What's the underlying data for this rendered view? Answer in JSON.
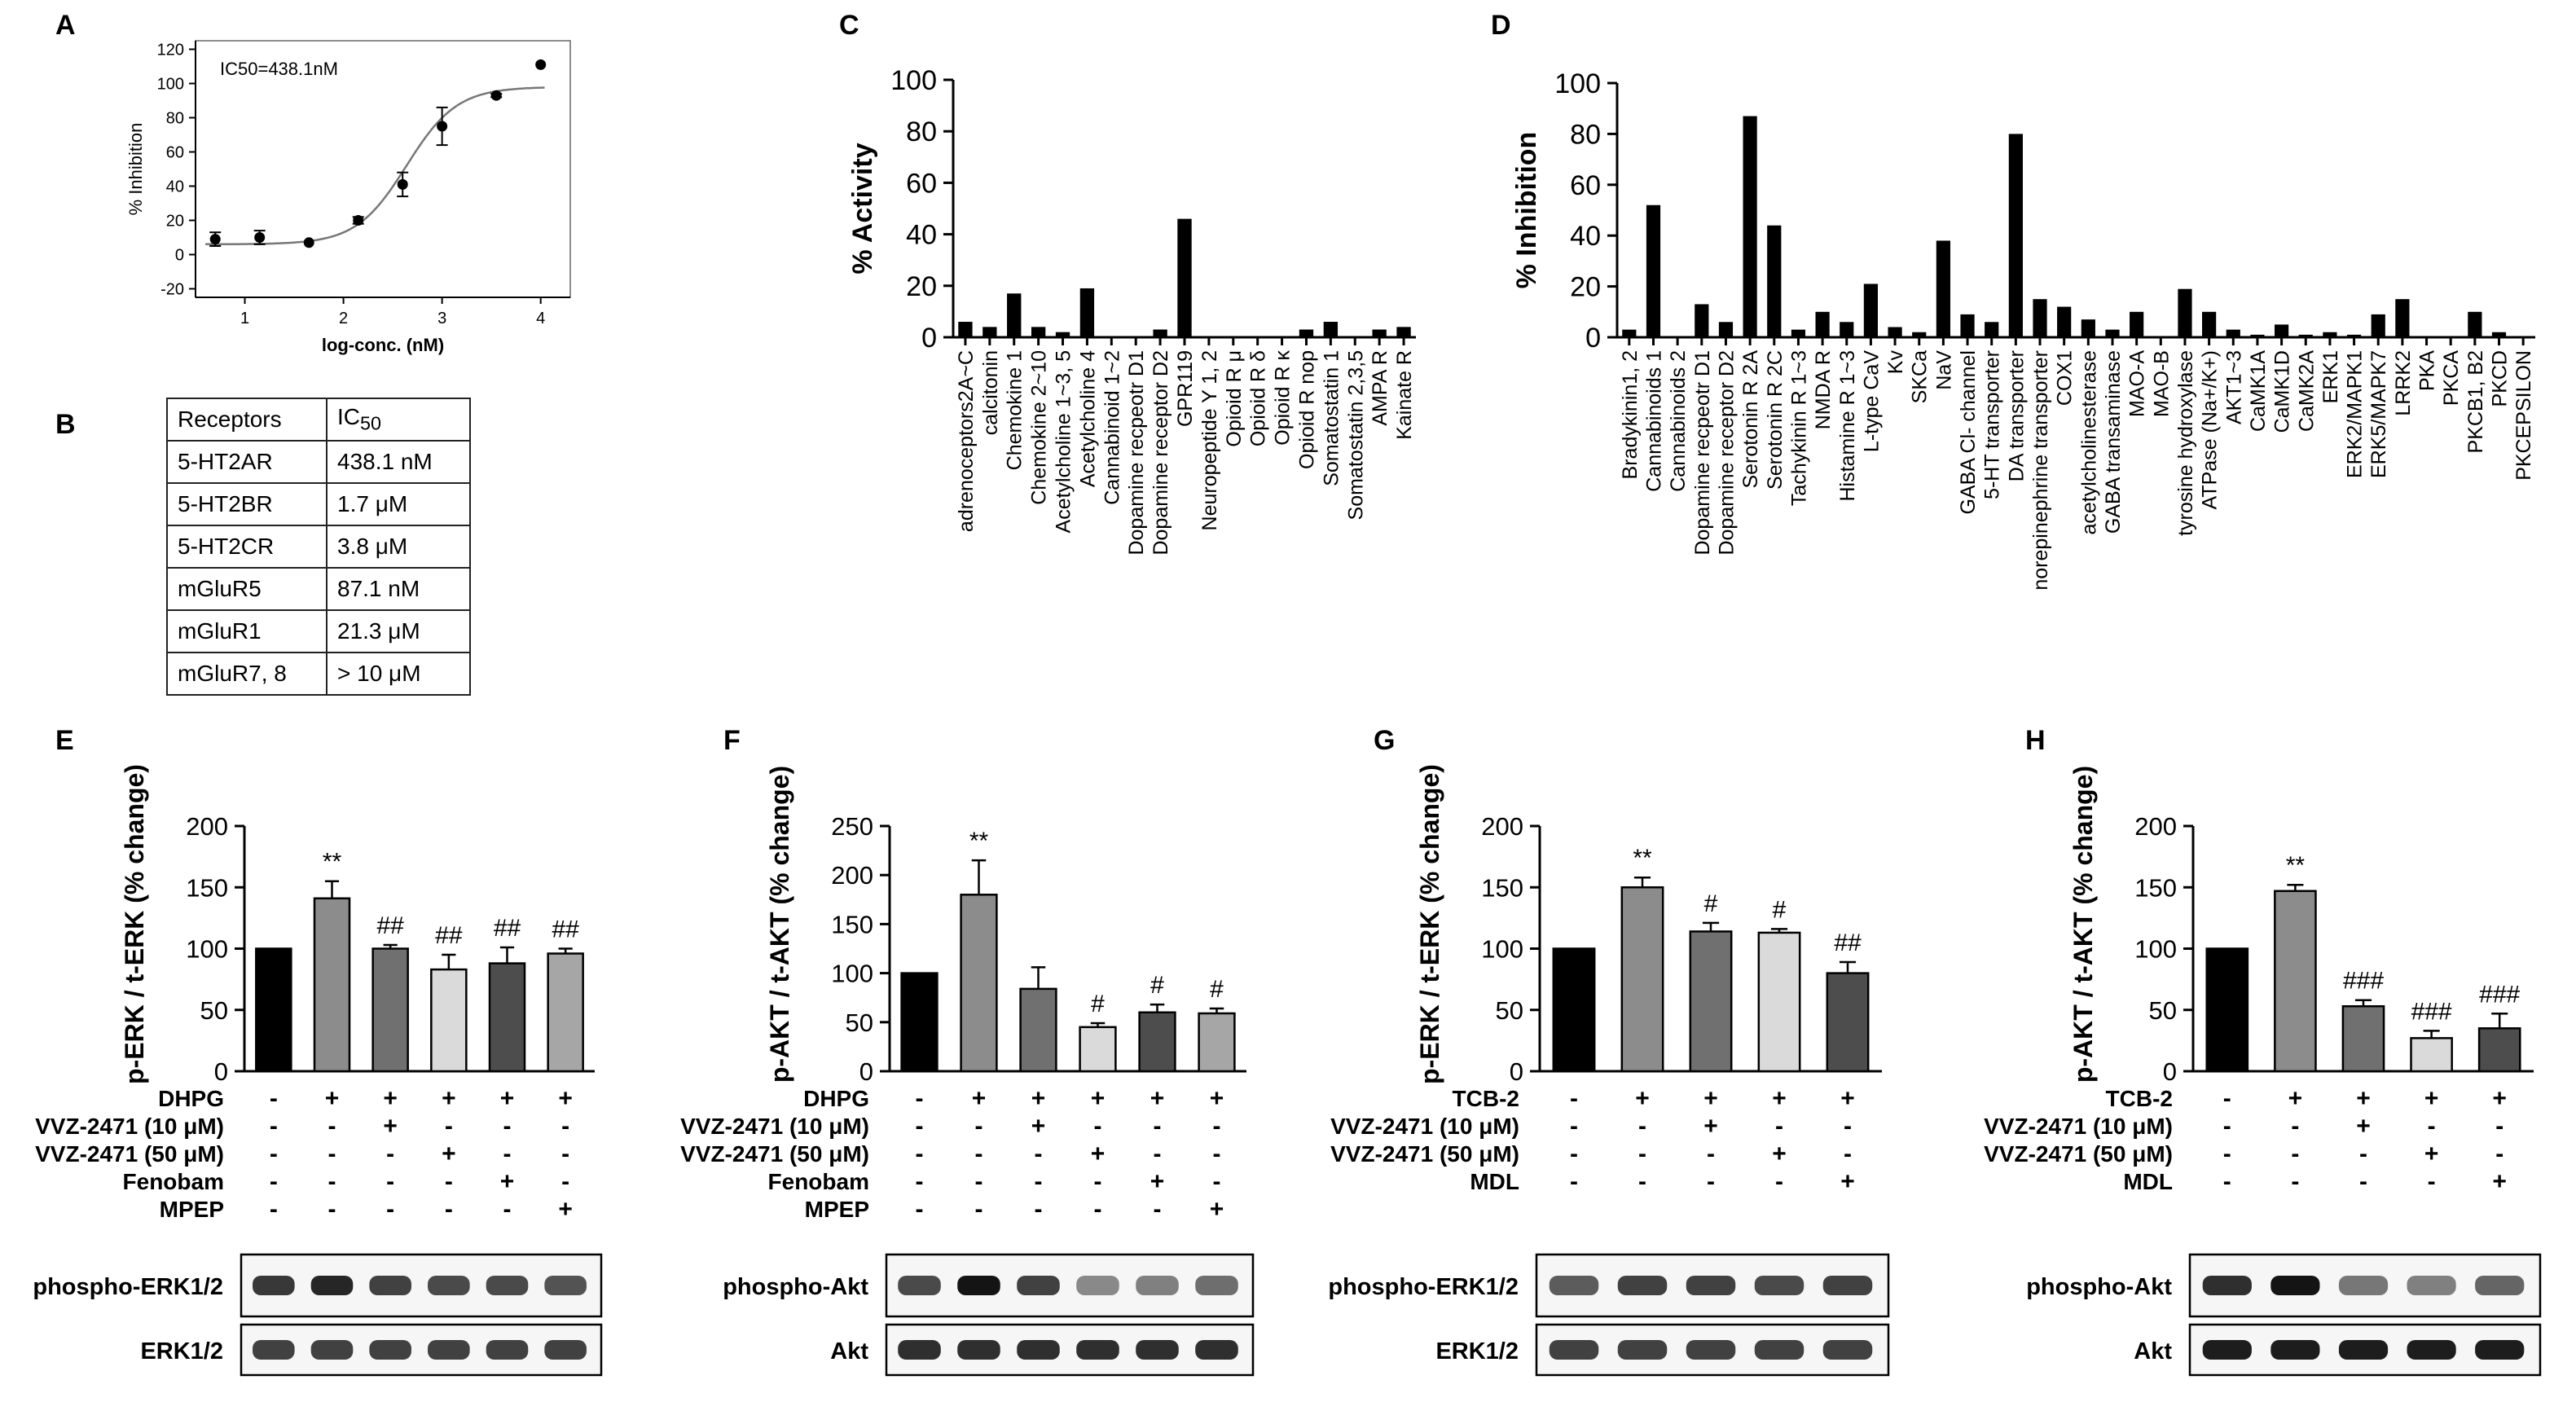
{
  "panel_letters": [
    "A",
    "B",
    "C",
    "D",
    "E",
    "F",
    "G",
    "H"
  ],
  "colors": {
    "black": "#000000",
    "dark": "#4d4d4d",
    "grey": "#8c8c8c",
    "mid": "#707070",
    "light": "#dadada",
    "pale": "#a6a6a6"
  },
  "chart_data": [
    {
      "id": "A",
      "type": "scatter",
      "title": "",
      "annotation": "IC50=438.1nM",
      "xlabel": "log-conc. (nM)",
      "ylabel": "% Inhibition",
      "xlim": [
        0.5,
        4.3
      ],
      "ylim": [
        -25,
        125
      ],
      "xticks": [
        1,
        2,
        3,
        4
      ],
      "yticks": [
        -20,
        0,
        20,
        40,
        60,
        80,
        100,
        120
      ],
      "points": [
        {
          "x": 0.7,
          "y": 9,
          "err": 4
        },
        {
          "x": 1.15,
          "y": 10,
          "err": 4
        },
        {
          "x": 1.65,
          "y": 7,
          "err": 0
        },
        {
          "x": 2.15,
          "y": 20,
          "err": 2
        },
        {
          "x": 2.6,
          "y": 41,
          "err": 7
        },
        {
          "x": 3.0,
          "y": 75,
          "err": 11
        },
        {
          "x": 3.55,
          "y": 93,
          "err": 1
        },
        {
          "x": 4.0,
          "y": 111,
          "err": 0
        }
      ],
      "fit": {
        "bottom": 6,
        "top": 98,
        "logIC50": 2.64,
        "hill": 1.7
      }
    },
    {
      "id": "C",
      "type": "bar",
      "ylabel": "% Activity",
      "ylim": [
        0,
        100
      ],
      "yticks": [
        0,
        20,
        40,
        60,
        80,
        100
      ],
      "categories": [
        "adrenoceptors2A~C",
        "calcitonin",
        "Chemokine 1",
        "Chemokine 2~10",
        "Acetylcholine 1~3, 5",
        "Acetylcholine 4",
        "Cannabinoid 1~2",
        "Dopamine recpeotr D1",
        "Dopamine receptor D2",
        "GPR119",
        "Neuropeptide Y 1, 2",
        "Opioid R μ",
        "Opioid R δ",
        "Opioid R κ",
        "Opioid R nop",
        "Somatostatin 1",
        "Somatostatin 2,3,5",
        "AMPA R",
        "Kainate R"
      ],
      "values": [
        6,
        4,
        17,
        4,
        2,
        19,
        0,
        0,
        3,
        46,
        0,
        0,
        0,
        0,
        3,
        6,
        0,
        3,
        4
      ]
    },
    {
      "id": "D",
      "type": "bar",
      "ylabel": "% Inhibition",
      "ylim": [
        0,
        100
      ],
      "yticks": [
        0,
        20,
        40,
        60,
        80,
        100
      ],
      "categories": [
        "Bradykinin1, 2",
        "Cannabinoids 1",
        "Cannabinoids 2",
        "Dopamine recpeotr D1",
        "Dopamine receptor D2",
        "Serotonin R 2A",
        "Serotonin R 2C",
        "Tachykinin R 1~3",
        "NMDA R",
        "Histamine R 1~3",
        "L-type CaV",
        "Kv",
        "SKCa",
        "NaV",
        "GABA Cl- channel",
        "5-HT transporter",
        "DA transporter",
        "norepinephrine transporter",
        "COX1",
        "acetylcholinesterase",
        "GABA transaminase",
        "MAO-A",
        "MAO-B",
        "tyrosine hydroxylase",
        "ATPase (Na+/K+)",
        "AKT1~3",
        "CaMK1A",
        "CaMK1D",
        "CaMK2A",
        "ERK1",
        "ERK2/MAPK1",
        "ERK5/MAPK7",
        "LRRK2",
        "PKA",
        "PKCA",
        "PKCB1, B2",
        "PKCD",
        "PKCEPSILON"
      ],
      "values": [
        3,
        52,
        0,
        13,
        6,
        87,
        44,
        3,
        10,
        6,
        21,
        4,
        2,
        38,
        9,
        6,
        80,
        15,
        12,
        7,
        3,
        10,
        0,
        19,
        10,
        3,
        1,
        5,
        1,
        2,
        1,
        9,
        15,
        0,
        0,
        10,
        2,
        0
      ]
    },
    {
      "id": "E",
      "type": "bar",
      "ylabel": "p-ERK / t-ERK (% change)",
      "ylim": [
        0,
        200
      ],
      "yticks": [
        0,
        50,
        100,
        150,
        200
      ],
      "values": [
        100,
        141,
        100,
        83,
        88,
        96
      ],
      "errors": [
        0,
        14,
        3,
        12,
        13,
        4
      ],
      "marks": [
        "",
        "**",
        "##",
        "##",
        "##",
        "##"
      ],
      "fills": [
        "#000000",
        "#8c8c8c",
        "#707070",
        "#dadada",
        "#4d4d4d",
        "#a6a6a6"
      ],
      "conditions": [
        {
          "label": "DHPG",
          "signs": [
            "-",
            "+",
            "+",
            "+",
            "+",
            "+"
          ]
        },
        {
          "label": "VVZ-2471 (10 μM)",
          "signs": [
            "-",
            "-",
            "+",
            "-",
            "-",
            "-"
          ]
        },
        {
          "label": "VVZ-2471 (50 μM)",
          "signs": [
            "-",
            "-",
            "-",
            "+",
            "-",
            "-"
          ]
        },
        {
          "label": "Fenobam",
          "signs": [
            "-",
            "-",
            "-",
            "-",
            "+",
            "-"
          ]
        },
        {
          "label": "MPEP",
          "signs": [
            "-",
            "-",
            "-",
            "-",
            "-",
            "+"
          ]
        }
      ],
      "blots": [
        {
          "label": "phospho-ERK1/2",
          "intensity": [
            0.8,
            0.9,
            0.75,
            0.7,
            0.7,
            0.65
          ]
        },
        {
          "label": "ERK1/2",
          "intensity": [
            0.75,
            0.75,
            0.75,
            0.75,
            0.75,
            0.75
          ]
        }
      ]
    },
    {
      "id": "F",
      "type": "bar",
      "ylabel": "p-AKT / t-AKT (% change)",
      "ylim": [
        0,
        250
      ],
      "yticks": [
        0,
        50,
        100,
        150,
        200,
        250
      ],
      "values": [
        100,
        180,
        84,
        45,
        60,
        59
      ],
      "errors": [
        0,
        35,
        22,
        4,
        8,
        5
      ],
      "marks": [
        "",
        "**",
        "",
        "#",
        "#",
        "#"
      ],
      "fills": [
        "#000000",
        "#8c8c8c",
        "#707070",
        "#dadada",
        "#4d4d4d",
        "#a6a6a6"
      ],
      "conditions": [
        {
          "label": "DHPG",
          "signs": [
            "-",
            "+",
            "+",
            "+",
            "+",
            "+"
          ]
        },
        {
          "label": "VVZ-2471 (10 μM)",
          "signs": [
            "-",
            "-",
            "+",
            "-",
            "-",
            "-"
          ]
        },
        {
          "label": "VVZ-2471 (50 μM)",
          "signs": [
            "-",
            "-",
            "-",
            "+",
            "-",
            "-"
          ]
        },
        {
          "label": "Fenobam",
          "signs": [
            "-",
            "-",
            "-",
            "-",
            "+",
            "-"
          ]
        },
        {
          "label": "MPEP",
          "signs": [
            "-",
            "-",
            "-",
            "-",
            "-",
            "+"
          ]
        }
      ],
      "blots": [
        {
          "label": "phospho-Akt",
          "intensity": [
            0.7,
            1.0,
            0.75,
            0.35,
            0.4,
            0.5
          ]
        },
        {
          "label": "Akt",
          "intensity": [
            0.85,
            0.85,
            0.85,
            0.85,
            0.85,
            0.85
          ]
        }
      ]
    },
    {
      "id": "G",
      "type": "bar",
      "ylabel": "p-ERK / t-ERK (% change)",
      "ylim": [
        0,
        200
      ],
      "yticks": [
        0,
        50,
        100,
        150,
        200
      ],
      "values": [
        100,
        150,
        114,
        113,
        80
      ],
      "errors": [
        0,
        8,
        7,
        3,
        9
      ],
      "marks": [
        "",
        "**",
        "#",
        "#",
        "##"
      ],
      "fills": [
        "#000000",
        "#8c8c8c",
        "#707070",
        "#dadada",
        "#4d4d4d"
      ],
      "conditions": [
        {
          "label": "TCB-2",
          "signs": [
            "-",
            "+",
            "+",
            "+",
            "+"
          ]
        },
        {
          "label": "VVZ-2471 (10 μM)",
          "signs": [
            "-",
            "-",
            "+",
            "-",
            "-"
          ]
        },
        {
          "label": "VVZ-2471 (50 μM)",
          "signs": [
            "-",
            "-",
            "-",
            "+",
            "-"
          ]
        },
        {
          "label": "MDL",
          "signs": [
            "-",
            "-",
            "-",
            "-",
            "+"
          ]
        }
      ],
      "blots": [
        {
          "label": "phospho-ERK1/2",
          "intensity": [
            0.6,
            0.75,
            0.75,
            0.7,
            0.75
          ]
        },
        {
          "label": "ERK1/2",
          "intensity": [
            0.75,
            0.75,
            0.75,
            0.75,
            0.75
          ]
        }
      ]
    },
    {
      "id": "H",
      "type": "bar",
      "ylabel": "p-AKT / t-AKT (% change)",
      "ylim": [
        0,
        200
      ],
      "yticks": [
        0,
        50,
        100,
        150,
        200
      ],
      "values": [
        100,
        147,
        53,
        27,
        35
      ],
      "errors": [
        0,
        5,
        5,
        6,
        12
      ],
      "marks": [
        "",
        "**",
        "###",
        "###",
        "###"
      ],
      "fills": [
        "#000000",
        "#8c8c8c",
        "#707070",
        "#dadada",
        "#4d4d4d"
      ],
      "conditions": [
        {
          "label": "TCB-2",
          "signs": [
            "-",
            "+",
            "+",
            "+",
            "+"
          ]
        },
        {
          "label": "VVZ-2471 (10 μM)",
          "signs": [
            "-",
            "-",
            "+",
            "-",
            "-"
          ]
        },
        {
          "label": "VVZ-2471 (50 μM)",
          "signs": [
            "-",
            "-",
            "-",
            "+",
            "-"
          ]
        },
        {
          "label": "MDL",
          "signs": [
            "-",
            "-",
            "-",
            "-",
            "+"
          ]
        }
      ],
      "blots": [
        {
          "label": "phospho-Akt",
          "intensity": [
            0.85,
            1.0,
            0.45,
            0.4,
            0.55
          ]
        },
        {
          "label": "Akt",
          "intensity": [
            0.95,
            0.95,
            0.95,
            0.95,
            0.95
          ]
        }
      ]
    }
  ],
  "table_B": {
    "headers": [
      "Receptors",
      "IC",
      "50"
    ],
    "rows": [
      [
        "5-HT2AR",
        "438.1 nM"
      ],
      [
        "5-HT2BR",
        "1.7 μM"
      ],
      [
        "5-HT2CR",
        "3.8 μM"
      ],
      [
        "mGluR5",
        "87.1 nM"
      ],
      [
        "mGluR1",
        "21.3 μM"
      ],
      [
        "mGluR7, 8",
        "> 10 μM"
      ]
    ]
  }
}
